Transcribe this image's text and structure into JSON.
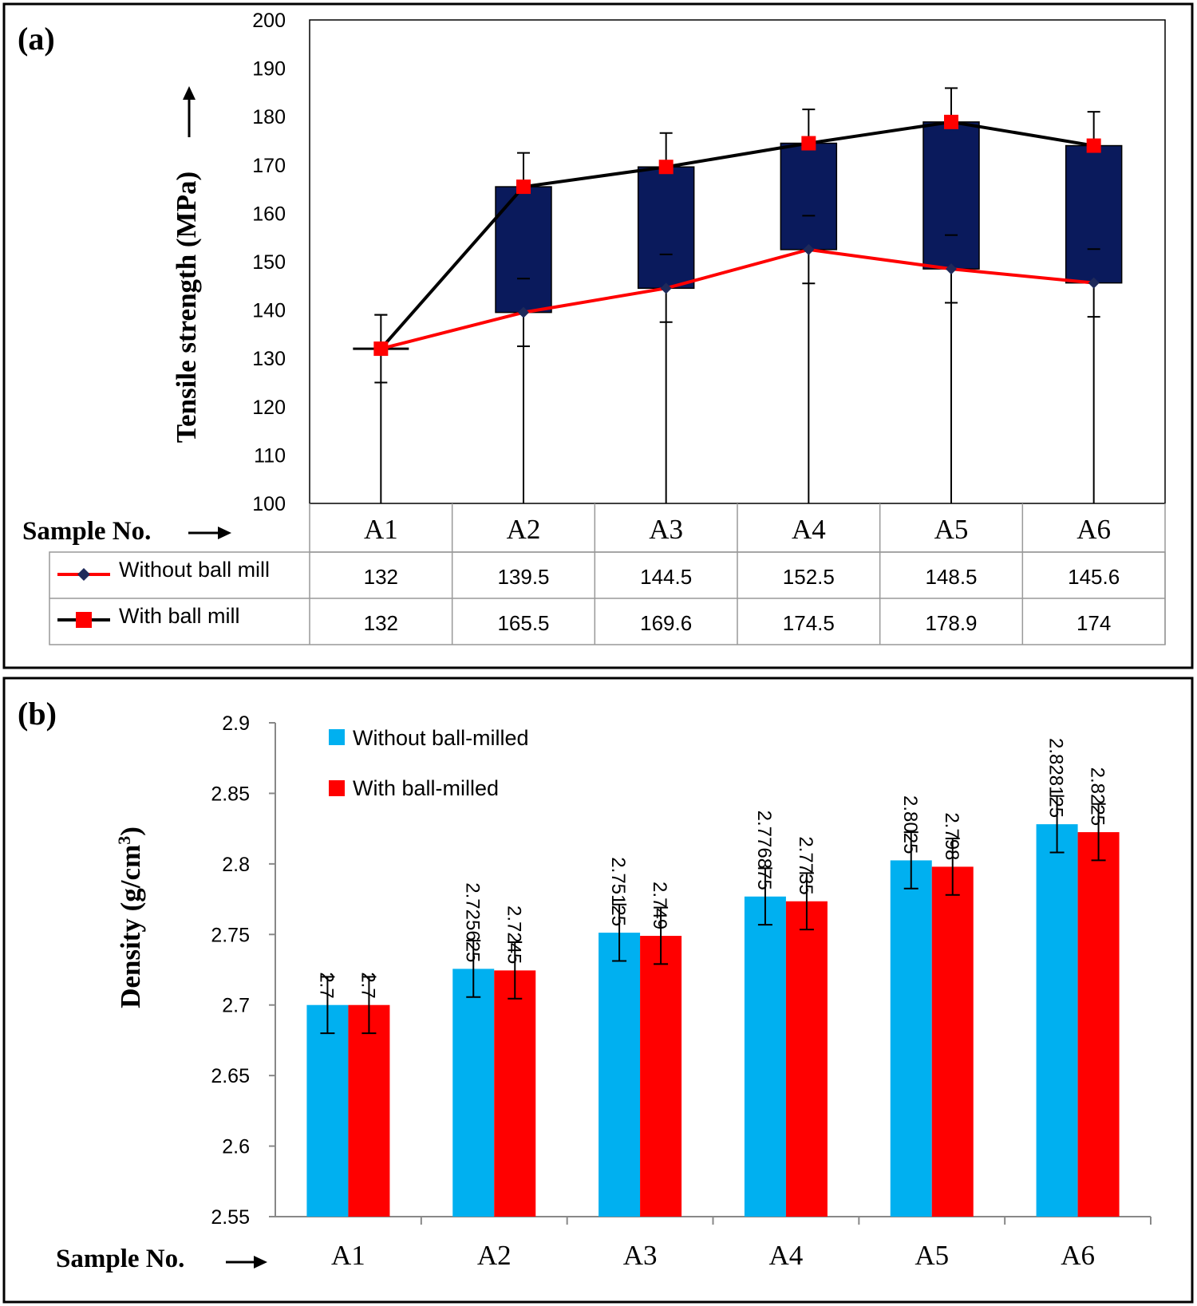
{
  "chart_data": [
    {
      "panel_label": "(a)",
      "type": "line",
      "ylabel": "Tensile strength (MPa)",
      "xlabel": "Sample No.",
      "ylim": [
        100,
        200
      ],
      "yticks": [
        "100",
        "110",
        "120",
        "130",
        "140",
        "150",
        "160",
        "170",
        "180",
        "190",
        "200"
      ],
      "categories": [
        "A1",
        "A2",
        "A3",
        "A4",
        "A5",
        "A6"
      ],
      "series": [
        {
          "name": "Without ball mill",
          "color": "#ff0000",
          "values": [
            132,
            139.5,
            144.5,
            152.5,
            148.5,
            145.6
          ],
          "table_values": [
            "132",
            "139.5",
            "144.5",
            "152.5",
            "148.5",
            "145.6"
          ]
        },
        {
          "name": "With ball mill",
          "color": "#000000",
          "values": [
            132,
            165.5,
            169.6,
            174.5,
            178.9,
            174
          ],
          "table_values": [
            "132",
            "165.5",
            "169.6",
            "174.5",
            "178.9",
            "174"
          ]
        }
      ],
      "error_bars": {
        "upper": 7,
        "lower": 7
      },
      "updown_bar_color": "#0a1a5c"
    },
    {
      "panel_label": "(b)",
      "type": "bar",
      "ylabel": "Density (g/cm",
      "ylabel_sup": "3",
      "ylabel_close": ")",
      "xlabel": "Sample No.",
      "ylim": [
        2.55,
        2.9
      ],
      "yticks": [
        "2.55",
        "2.6",
        "2.65",
        "2.7",
        "2.75",
        "2.8",
        "2.85",
        "2.9"
      ],
      "categories": [
        "A1",
        "A2",
        "A3",
        "A4",
        "A5",
        "A6"
      ],
      "series": [
        {
          "name": "Without ball-milled",
          "color": "#00b0f0",
          "values": [
            2.7,
            2.725625,
            2.75125,
            2.776875,
            2.8025,
            2.828125
          ],
          "labels": [
            "2.7",
            "2.725625",
            "2.75125",
            "2.776875",
            "2.8025",
            "2.828125"
          ]
        },
        {
          "name": "With ball-milled",
          "color": "#ff0000",
          "values": [
            2.7,
            2.7245,
            2.749,
            2.7735,
            2.798,
            2.8225
          ],
          "labels": [
            "2.7",
            "2.7245",
            "2.749",
            "2.7735",
            "2.798",
            "2.8225"
          ]
        }
      ],
      "error": 0.02
    }
  ]
}
